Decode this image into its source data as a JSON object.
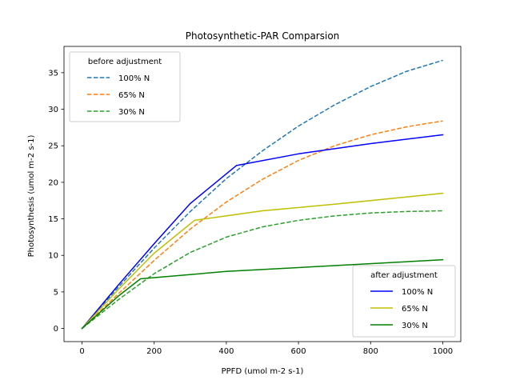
{
  "chart_data": {
    "type": "line",
    "title": "Photosynthetic-PAR Comparsion",
    "xlabel": "PPFD (umol m-2 s-1)",
    "ylabel": "Photosynthesis (umol m-2 s-1)",
    "xlim": [
      -50,
      1050
    ],
    "ylim": [
      -1.8,
      38.6
    ],
    "xticks": [
      0,
      200,
      400,
      600,
      800,
      1000
    ],
    "yticks": [
      0,
      5,
      10,
      15,
      20,
      25,
      30,
      35
    ],
    "grid": false,
    "legends": [
      {
        "title": "before adjustment",
        "placement": "upper left",
        "entries": [
          {
            "label": "100% N",
            "series": 0
          },
          {
            "label": "65% N",
            "series": 1
          },
          {
            "label": "30% N",
            "series": 2
          }
        ]
      },
      {
        "title": "after adjustment",
        "placement": "lower right",
        "entries": [
          {
            "label": "100% N",
            "series": 3
          },
          {
            "label": "65% N",
            "series": 4
          },
          {
            "label": "30% N",
            "series": 5
          }
        ]
      }
    ],
    "series": [
      {
        "name": "100% N",
        "group": "before adjustment",
        "style": "dashed",
        "color": "#1f77b4",
        "x": [
          0,
          100,
          200,
          300,
          400,
          500,
          600,
          700,
          800,
          900,
          1000
        ],
        "y": [
          0,
          5.6,
          11.0,
          16.0,
          20.5,
          24.3,
          27.7,
          30.6,
          33.1,
          35.2,
          36.7
        ]
      },
      {
        "name": "65% N",
        "group": "before adjustment",
        "style": "dashed",
        "color": "#ff7f0e",
        "x": [
          0,
          100,
          200,
          300,
          400,
          500,
          600,
          700,
          800,
          900,
          1000
        ],
        "y": [
          0,
          4.7,
          9.3,
          13.6,
          17.3,
          20.4,
          23.0,
          25.0,
          26.5,
          27.6,
          28.4
        ]
      },
      {
        "name": "30% N",
        "group": "before adjustment",
        "style": "dashed",
        "color": "#2ca02c",
        "x": [
          0,
          100,
          200,
          300,
          400,
          500,
          600,
          700,
          800,
          900,
          1000
        ],
        "y": [
          0,
          3.9,
          7.5,
          10.4,
          12.5,
          13.9,
          14.8,
          15.4,
          15.8,
          16.0,
          16.1
        ]
      },
      {
        "name": "100% N",
        "group": "after adjustment",
        "style": "solid",
        "color": "#0000ff",
        "x": [
          0,
          100,
          200,
          300,
          428,
          600,
          800,
          1000
        ],
        "y": [
          0,
          5.9,
          11.6,
          17.1,
          22.3,
          23.9,
          25.3,
          26.5
        ]
      },
      {
        "name": "65% N",
        "group": "after adjustment",
        "style": "solid",
        "color": "#bfbf00",
        "x": [
          0,
          100,
          200,
          312,
          500,
          700,
          1000
        ],
        "y": [
          0,
          5.3,
          10.3,
          14.8,
          16.1,
          17.0,
          18.5
        ]
      },
      {
        "name": "30% N",
        "group": "after adjustment",
        "style": "solid",
        "color": "#008000",
        "x": [
          0,
          100,
          162,
          400,
          700,
          1000
        ],
        "y": [
          0,
          4.4,
          6.8,
          7.8,
          8.6,
          9.4
        ]
      }
    ]
  }
}
